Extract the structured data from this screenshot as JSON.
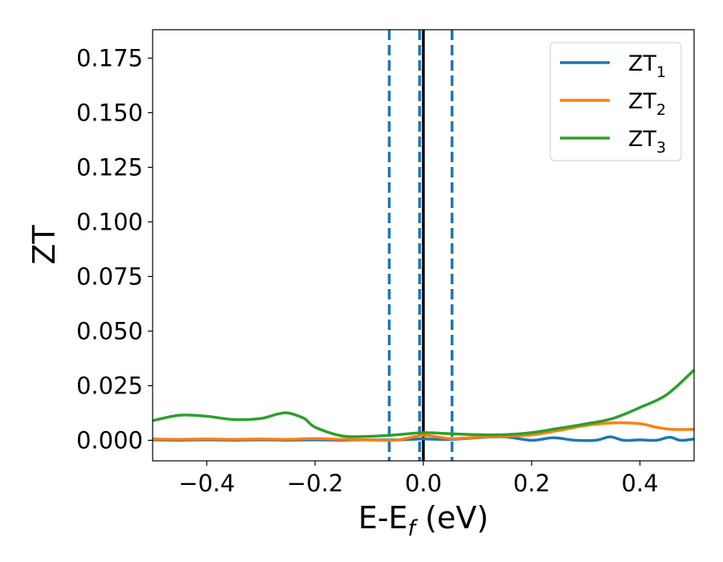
{
  "chart_data": {
    "type": "line",
    "xlabel": {
      "main": "E-E",
      "sub": "f",
      "suffix": " (eV)"
    },
    "ylabel": "ZT",
    "xlim": [
      -0.5,
      0.5
    ],
    "ylim": [
      -0.0094,
      0.188
    ],
    "x_ticks": [
      -0.4,
      -0.2,
      0.0,
      0.2,
      0.4
    ],
    "x_tick_labels": [
      "−0.4",
      "−0.2",
      "0.0",
      "0.2",
      "0.4"
    ],
    "y_ticks": [
      0.0,
      0.025,
      0.05,
      0.075,
      0.1,
      0.125,
      0.15,
      0.175
    ],
    "y_tick_labels": [
      "0.000",
      "0.025",
      "0.050",
      "0.075",
      "0.100",
      "0.125",
      "0.150",
      "0.175"
    ],
    "grid": false,
    "legend_position": "top-right",
    "vertical_lines": [
      {
        "x": -0.063,
        "style": "dashed",
        "color": "#1f77b4"
      },
      {
        "x": -0.007,
        "style": "dashed",
        "color": "#1f77b4"
      },
      {
        "x": 0.053,
        "style": "dashed",
        "color": "#1f77b4"
      },
      {
        "x": 0.0,
        "style": "solid",
        "color": "#000000"
      }
    ],
    "series": [
      {
        "name": "ZT",
        "sub": "1",
        "color": "#1f77b4",
        "x": [
          -0.5,
          -0.45,
          -0.4,
          -0.35,
          -0.3,
          -0.25,
          -0.2,
          -0.15,
          -0.1,
          -0.05,
          0.0,
          0.05,
          0.1,
          0.15,
          0.2,
          0.24,
          0.28,
          0.32,
          0.345,
          0.37,
          0.4,
          0.43,
          0.455,
          0.475,
          0.5
        ],
        "y": [
          0.0002,
          0.0001,
          0.0002,
          0.0001,
          0.0002,
          0.0001,
          0.0002,
          0.0001,
          0.0002,
          0.0002,
          0.0006,
          0.0004,
          0.0012,
          0.0016,
          0.0,
          0.0012,
          0.0,
          0.0001,
          0.0016,
          0.0,
          0.0002,
          0.0,
          0.0014,
          0.0,
          0.0006
        ]
      },
      {
        "name": "ZT",
        "sub": "2",
        "color": "#ff7f0e",
        "x": [
          -0.5,
          -0.45,
          -0.4,
          -0.35,
          -0.3,
          -0.25,
          -0.2,
          -0.15,
          -0.1,
          -0.05,
          0.0,
          0.05,
          0.1,
          0.15,
          0.2,
          0.25,
          0.3,
          0.35,
          0.4,
          0.43,
          0.46,
          0.5
        ],
        "y": [
          0.0006,
          0.0004,
          0.0006,
          0.0004,
          0.0006,
          0.0004,
          0.0008,
          0.0004,
          0.0002,
          0.0001,
          0.0022,
          0.0008,
          0.0014,
          0.0018,
          0.0025,
          0.0045,
          0.0068,
          0.008,
          0.0076,
          0.006,
          0.005,
          0.005
        ]
      },
      {
        "name": "ZT",
        "sub": "3",
        "color": "#2ca02c",
        "x": [
          -0.5,
          -0.45,
          -0.4,
          -0.35,
          -0.3,
          -0.27,
          -0.25,
          -0.22,
          -0.2,
          -0.15,
          -0.1,
          -0.05,
          0.0,
          0.05,
          0.1,
          0.15,
          0.2,
          0.25,
          0.3,
          0.35,
          0.4,
          0.45,
          0.5
        ],
        "y": [
          0.009,
          0.0115,
          0.011,
          0.0095,
          0.01,
          0.012,
          0.0125,
          0.01,
          0.006,
          0.002,
          0.0018,
          0.0025,
          0.0035,
          0.003,
          0.0026,
          0.0026,
          0.0035,
          0.0055,
          0.0075,
          0.01,
          0.015,
          0.021,
          0.0322
        ]
      }
    ]
  }
}
